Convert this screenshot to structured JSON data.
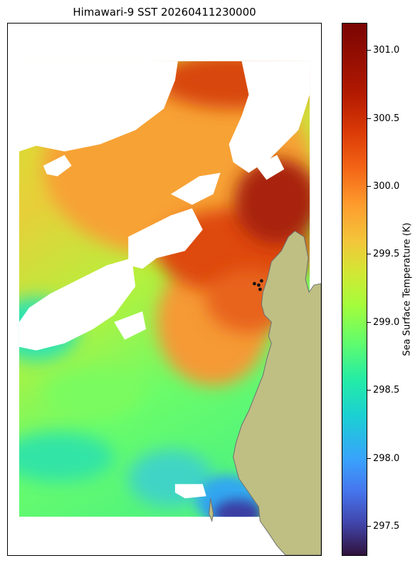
{
  "title": "Himawari-9 SST 20260411230000",
  "colorbar": {
    "label": "Sea Surface Temperature (K)",
    "min": 297.28,
    "max": 301.2,
    "ticks": [
      "297.5",
      "298.0",
      "298.5",
      "299.0",
      "299.5",
      "300.0",
      "300.5",
      "301.0"
    ]
  },
  "colors": {
    "land": "#bfbf84",
    "coast": "#6f6f6f",
    "cloud_mask": "#ffffff",
    "marker": "#111111"
  }
}
